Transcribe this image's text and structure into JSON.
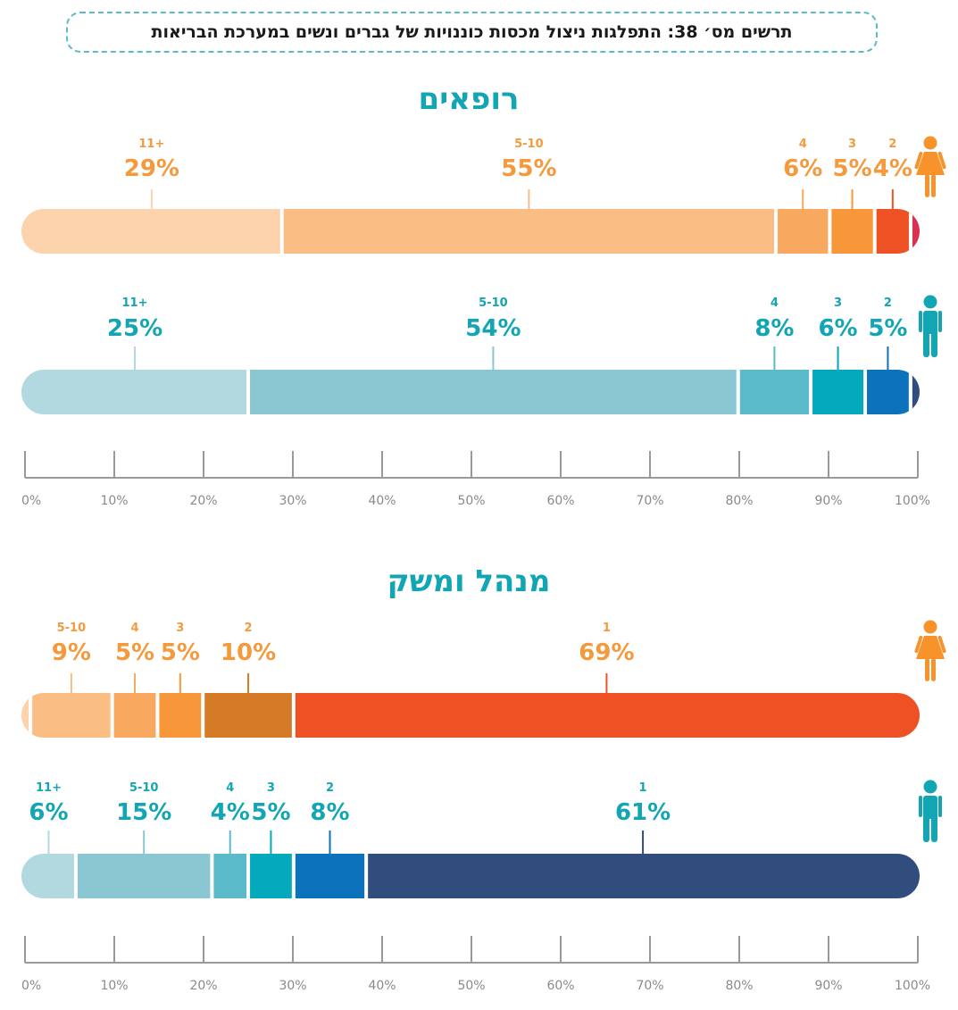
{
  "title": "תרשים מס׳ 38: התפלגות ניצול  מכסות כוננויות של גברים ונשים במערכת הבריאות",
  "chart_data": {
    "type": "bar",
    "orientation": "horizontal-stacked-100",
    "xlim": [
      0,
      100
    ],
    "x_ticks": [
      "0%",
      "10%",
      "20%",
      "30%",
      "40%",
      "50%",
      "60%",
      "70%",
      "80%",
      "90%",
      "100%"
    ],
    "groups": [
      {
        "title": "רופאים",
        "rows": [
          {
            "gender": "female",
            "icon": "woman-icon",
            "icon_color": "#f7932a",
            "label_color": "#f49a3c",
            "segments": [
              {
                "category": "11+",
                "value": 29,
                "label": "29%",
                "color": "#fcd3ac"
              },
              {
                "category": "5-10",
                "value": 55,
                "label": "55%",
                "color": "#fabd83"
              },
              {
                "category": "4",
                "value": 6,
                "label": "6%",
                "color": "#f8a95f"
              },
              {
                "category": "3",
                "value": 5,
                "label": "5%",
                "color": "#f7973a"
              },
              {
                "category": "2",
                "value": 4,
                "label": "4%",
                "color": "#ee5224"
              },
              {
                "category": "1",
                "value": 1,
                "label": "",
                "color": "#d9314f"
              }
            ]
          },
          {
            "gender": "male",
            "icon": "man-icon",
            "icon_color": "#12a5b3",
            "label_color": "#12a5b3",
            "segments": [
              {
                "category": "11+",
                "value": 25,
                "label": "25%",
                "color": "#b2d9df"
              },
              {
                "category": "5-10",
                "value": 54,
                "label": "54%",
                "color": "#8bc7d3"
              },
              {
                "category": "4",
                "value": 8,
                "label": "8%",
                "color": "#5bbac9"
              },
              {
                "category": "3",
                "value": 6,
                "label": "6%",
                "color": "#04aabb"
              },
              {
                "category": "2",
                "value": 5,
                "label": "5%",
                "color": "#0b72bb"
              },
              {
                "category": "1",
                "value": 1,
                "label": "",
                "color": "#304d7e"
              }
            ]
          }
        ]
      },
      {
        "title": "מנהל ומשק",
        "rows": [
          {
            "gender": "female",
            "icon": "woman-icon",
            "icon_color": "#f7932a",
            "label_color": "#f49a3c",
            "segments": [
              {
                "category": "11+",
                "value": 1,
                "label": "",
                "color": "#fcd3ac"
              },
              {
                "category": "5-10",
                "value": 9,
                "label": "9%",
                "color": "#fabd83"
              },
              {
                "category": "4",
                "value": 5,
                "label": "5%",
                "color": "#f8a95f"
              },
              {
                "category": "3",
                "value": 5,
                "label": "5%",
                "color": "#f7973a"
              },
              {
                "category": "2",
                "value": 10,
                "label": "10%",
                "color": "#d57a25"
              },
              {
                "category": "1",
                "value": 69,
                "label": "69%",
                "color": "#ee5224"
              }
            ]
          },
          {
            "gender": "male",
            "icon": "man-icon",
            "icon_color": "#12a5b3",
            "label_color": "#12a5b3",
            "segments": [
              {
                "category": "11+",
                "value": 6,
                "label": "6%",
                "color": "#b2d9df"
              },
              {
                "category": "5-10",
                "value": 15,
                "label": "15%",
                "color": "#8bc7d3"
              },
              {
                "category": "4",
                "value": 4,
                "label": "4%",
                "color": "#5bbac9"
              },
              {
                "category": "3",
                "value": 5,
                "label": "5%",
                "color": "#04aabb"
              },
              {
                "category": "2",
                "value": 8,
                "label": "8%",
                "color": "#0b72bb"
              },
              {
                "category": "1",
                "value": 61,
                "label": "61%",
                "color": "#304d7e"
              }
            ]
          }
        ]
      }
    ]
  }
}
